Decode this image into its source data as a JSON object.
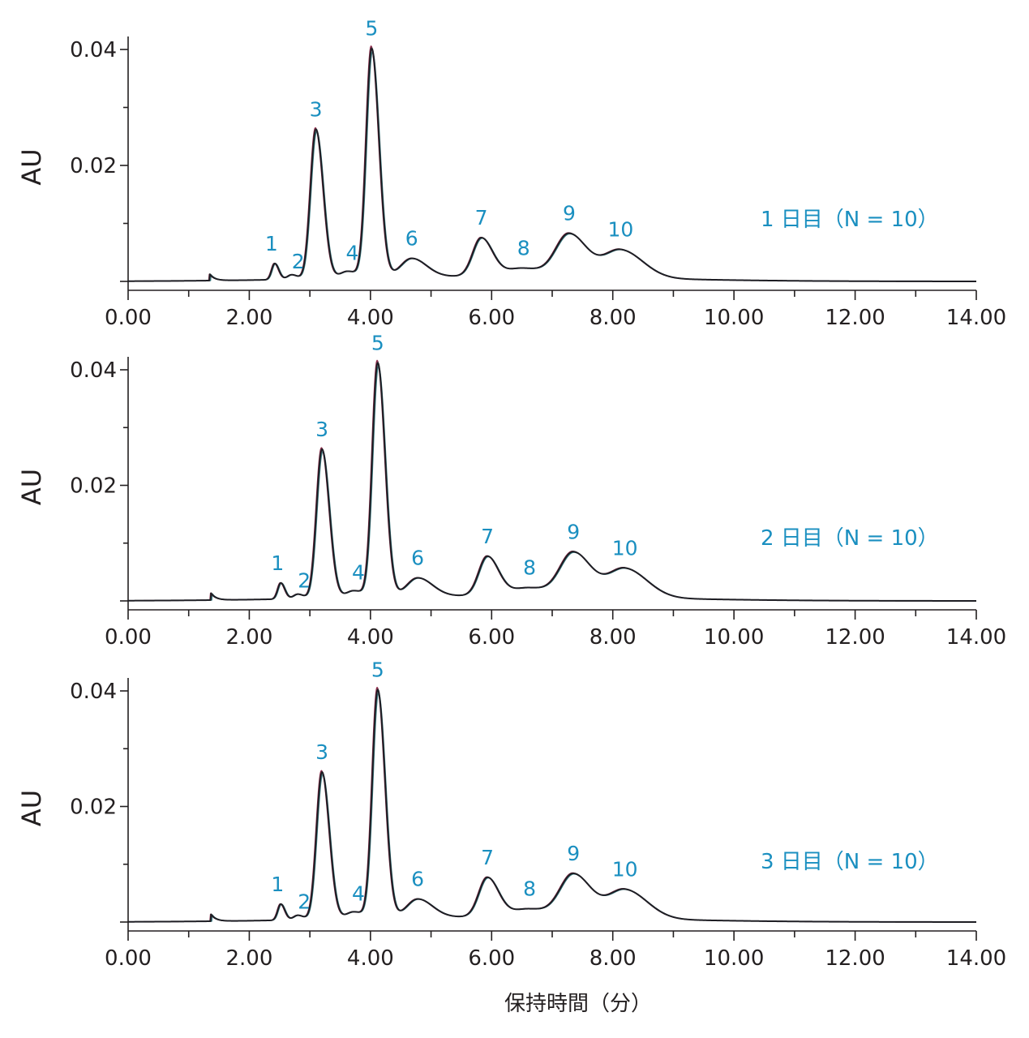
{
  "colors": {
    "trace": "#1e1e24",
    "trace_overlay_1": "#8b2b4a",
    "trace_overlay_2": "#3a7f86",
    "label": "#1a8fc0",
    "axis": "#231f20"
  },
  "x_axis_label": "保持時間（分）",
  "chart_data": [
    {
      "type": "line",
      "title": "",
      "annotation": "1 日目（N = 10）",
      "xlabel": "",
      "ylabel": "AU",
      "xlim": [
        0,
        14
      ],
      "ylim": [
        -0.0025,
        0.042
      ],
      "x_ticks": [
        "0.00",
        "2.00",
        "4.00",
        "6.00",
        "8.00",
        "10.00",
        "12.00",
        "14.00"
      ],
      "y_ticks": [
        "0.02",
        "0.04"
      ],
      "peaks": [
        {
          "label": "1",
          "rt": 2.42,
          "height": 0.0028,
          "sigma": 0.05
        },
        {
          "label": "2",
          "rt": 2.7,
          "height": 0.0008,
          "sigma": 0.07
        },
        {
          "label": "3",
          "rt": 3.1,
          "height": 0.0258,
          "sigma": 0.09
        },
        {
          "label": "4",
          "rt": 3.62,
          "height": 0.0012,
          "sigma": 0.12
        },
        {
          "label": "5",
          "rt": 4.02,
          "height": 0.0395,
          "sigma": 0.09
        },
        {
          "label": "6",
          "rt": 4.68,
          "height": 0.0032,
          "sigma": 0.18
        },
        {
          "label": "7",
          "rt": 5.83,
          "height": 0.0066,
          "sigma": 0.14
        },
        {
          "label": "8",
          "rt": 6.5,
          "height": 0.0014,
          "sigma": 0.25
        },
        {
          "label": "9",
          "rt": 7.28,
          "height": 0.0074,
          "sigma": 0.22
        },
        {
          "label": "10",
          "rt": 8.13,
          "height": 0.0048,
          "sigma": 0.27
        }
      ],
      "minor_features": [
        {
          "rt": 1.35,
          "height": 0.0011
        }
      ]
    },
    {
      "type": "line",
      "title": "",
      "annotation": "2 日目（N = 10）",
      "xlabel": "",
      "ylabel": "AU",
      "xlim": [
        0,
        14
      ],
      "ylim": [
        -0.0025,
        0.042
      ],
      "x_ticks": [
        "0.00",
        "2.00",
        "4.00",
        "6.00",
        "8.00",
        "10.00",
        "12.00",
        "14.00"
      ],
      "y_ticks": [
        "0.02",
        "0.04"
      ],
      "peaks": [
        {
          "label": "1",
          "rt": 2.52,
          "height": 0.0028,
          "sigma": 0.05
        },
        {
          "label": "2",
          "rt": 2.8,
          "height": 0.0008,
          "sigma": 0.07
        },
        {
          "label": "3",
          "rt": 3.2,
          "height": 0.0258,
          "sigma": 0.09
        },
        {
          "label": "4",
          "rt": 3.72,
          "height": 0.0012,
          "sigma": 0.12
        },
        {
          "label": "5",
          "rt": 4.12,
          "height": 0.0405,
          "sigma": 0.09
        },
        {
          "label": "6",
          "rt": 4.78,
          "height": 0.0032,
          "sigma": 0.18
        },
        {
          "label": "7",
          "rt": 5.93,
          "height": 0.0068,
          "sigma": 0.14
        },
        {
          "label": "8",
          "rt": 6.6,
          "height": 0.0014,
          "sigma": 0.25
        },
        {
          "label": "9",
          "rt": 7.35,
          "height": 0.0076,
          "sigma": 0.22
        },
        {
          "label": "10",
          "rt": 8.2,
          "height": 0.005,
          "sigma": 0.27
        }
      ],
      "minor_features": [
        {
          "rt": 1.37,
          "height": 0.0012
        }
      ]
    },
    {
      "type": "line",
      "title": "",
      "annotation": "3 日目（N = 10）",
      "xlabel": "保持時間（分）",
      "ylabel": "AU",
      "xlim": [
        0,
        14
      ],
      "ylim": [
        -0.0025,
        0.042
      ],
      "x_ticks": [
        "0.00",
        "2.00",
        "4.00",
        "6.00",
        "8.00",
        "10.00",
        "12.00",
        "14.00"
      ],
      "y_ticks": [
        "0.02",
        "0.04"
      ],
      "peaks": [
        {
          "label": "1",
          "rt": 2.52,
          "height": 0.0028,
          "sigma": 0.05
        },
        {
          "label": "2",
          "rt": 2.8,
          "height": 0.0008,
          "sigma": 0.07
        },
        {
          "label": "3",
          "rt": 3.2,
          "height": 0.0255,
          "sigma": 0.09
        },
        {
          "label": "4",
          "rt": 3.72,
          "height": 0.0012,
          "sigma": 0.12
        },
        {
          "label": "5",
          "rt": 4.12,
          "height": 0.0395,
          "sigma": 0.09
        },
        {
          "label": "6",
          "rt": 4.78,
          "height": 0.0032,
          "sigma": 0.18
        },
        {
          "label": "7",
          "rt": 5.93,
          "height": 0.0068,
          "sigma": 0.14
        },
        {
          "label": "8",
          "rt": 6.6,
          "height": 0.0014,
          "sigma": 0.25
        },
        {
          "label": "9",
          "rt": 7.35,
          "height": 0.0075,
          "sigma": 0.22
        },
        {
          "label": "10",
          "rt": 8.2,
          "height": 0.005,
          "sigma": 0.27
        }
      ],
      "minor_features": [
        {
          "rt": 1.37,
          "height": 0.0012
        }
      ]
    }
  ]
}
